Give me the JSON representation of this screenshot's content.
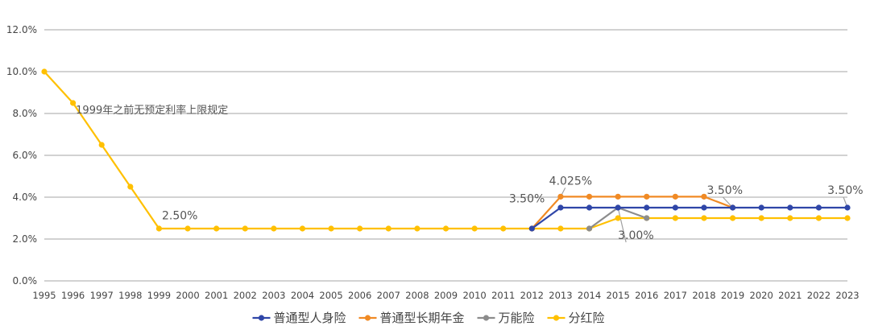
{
  "chart_data": {
    "type": "line",
    "x": [
      1995,
      1996,
      1997,
      1998,
      1999,
      2000,
      2001,
      2002,
      2003,
      2004,
      2005,
      2006,
      2007,
      2008,
      2009,
      2010,
      2011,
      2012,
      2013,
      2014,
      2015,
      2016,
      2017,
      2018,
      2019,
      2020,
      2021,
      2022,
      2023
    ],
    "x_tick_labels": [
      "1995",
      "1996",
      "1997",
      "1998",
      "1999",
      "2000",
      "2001",
      "2002",
      "2003",
      "2004",
      "2005",
      "2006",
      "2007",
      "2008",
      "2009",
      "2010",
      "2011",
      "2012",
      "2013",
      "2014",
      "2015",
      "2016",
      "2017",
      "2018",
      "2019",
      "2020",
      "2021",
      "2022",
      "2023"
    ],
    "ylim": [
      0,
      12
    ],
    "y_ticks": [
      0,
      2,
      4,
      6,
      8,
      10,
      12
    ],
    "y_tick_labels": [
      "0.0%",
      "2.0%",
      "4.0%",
      "6.0%",
      "8.0%",
      "10.0%",
      "12.0%"
    ],
    "grid": "horizontal",
    "legend_position": "bottom",
    "series": [
      {
        "name": "普通型人身险",
        "color": "#2f46a8",
        "points": [
          [
            2012,
            2.5
          ],
          [
            2013,
            3.5
          ],
          [
            2014,
            3.5
          ],
          [
            2015,
            3.5
          ],
          [
            2016,
            3.5
          ],
          [
            2017,
            3.5
          ],
          [
            2018,
            3.5
          ],
          [
            2019,
            3.5
          ],
          [
            2020,
            3.5
          ],
          [
            2021,
            3.5
          ],
          [
            2022,
            3.5
          ],
          [
            2023,
            3.5
          ]
        ]
      },
      {
        "name": "普通型长期年金",
        "color": "#f08a24",
        "points": [
          [
            2012,
            2.5
          ],
          [
            2013,
            4.025
          ],
          [
            2014,
            4.025
          ],
          [
            2015,
            4.025
          ],
          [
            2016,
            4.025
          ],
          [
            2017,
            4.025
          ],
          [
            2018,
            4.025
          ],
          [
            2019,
            3.5
          ]
        ]
      },
      {
        "name": "万能险",
        "color": "#8c8c8c",
        "points": [
          [
            2014,
            2.5
          ],
          [
            2015,
            3.5
          ],
          [
            2016,
            3.0
          ]
        ]
      },
      {
        "name": "分红险",
        "color": "#ffc000",
        "points": [
          [
            1995,
            10
          ],
          [
            1996,
            8.5
          ],
          [
            1997,
            6.5
          ],
          [
            1998,
            4.5
          ],
          [
            1999,
            2.5
          ],
          [
            2000,
            2.5
          ],
          [
            2001,
            2.5
          ],
          [
            2002,
            2.5
          ],
          [
            2003,
            2.5
          ],
          [
            2004,
            2.5
          ],
          [
            2005,
            2.5
          ],
          [
            2006,
            2.5
          ],
          [
            2007,
            2.5
          ],
          [
            2008,
            2.5
          ],
          [
            2009,
            2.5
          ],
          [
            2010,
            2.5
          ],
          [
            2011,
            2.5
          ],
          [
            2012,
            2.5
          ],
          [
            2013,
            2.5
          ],
          [
            2014,
            2.5
          ],
          [
            2015,
            3.0
          ],
          [
            2016,
            3.0
          ],
          [
            2017,
            3.0
          ],
          [
            2018,
            3.0
          ],
          [
            2019,
            3.0
          ],
          [
            2020,
            3.0
          ],
          [
            2021,
            3.0
          ],
          [
            2022,
            3.0
          ],
          [
            2023,
            3.0
          ]
        ]
      }
    ],
    "annotations": [
      {
        "text": "1999年之前无预定利率上限规定",
        "x": 1996.1,
        "y": 8.0,
        "kind": "note"
      },
      {
        "text": "2.50%",
        "x": 1999.1,
        "y": 2.95,
        "kind": "label",
        "leader_to": null
      },
      {
        "text": "4.025%",
        "x": 2012.6,
        "y": 4.6,
        "kind": "label",
        "leader_to": [
          2013,
          4.025
        ]
      },
      {
        "text": "3.50%",
        "x": 2011.2,
        "y": 3.75,
        "kind": "label",
        "leader_to": null
      },
      {
        "text": "3.50%",
        "x": 2018.1,
        "y": 4.15,
        "kind": "label",
        "leader_to": [
          2019,
          3.5
        ]
      },
      {
        "text": "3.50%",
        "x": 2022.3,
        "y": 4.15,
        "kind": "label",
        "leader_to": [
          2023,
          3.5
        ]
      },
      {
        "text": "3.00%",
        "x": 2015.0,
        "y": 2.0,
        "kind": "label",
        "leader_to": [
          2015,
          3.5
        ]
      }
    ]
  }
}
